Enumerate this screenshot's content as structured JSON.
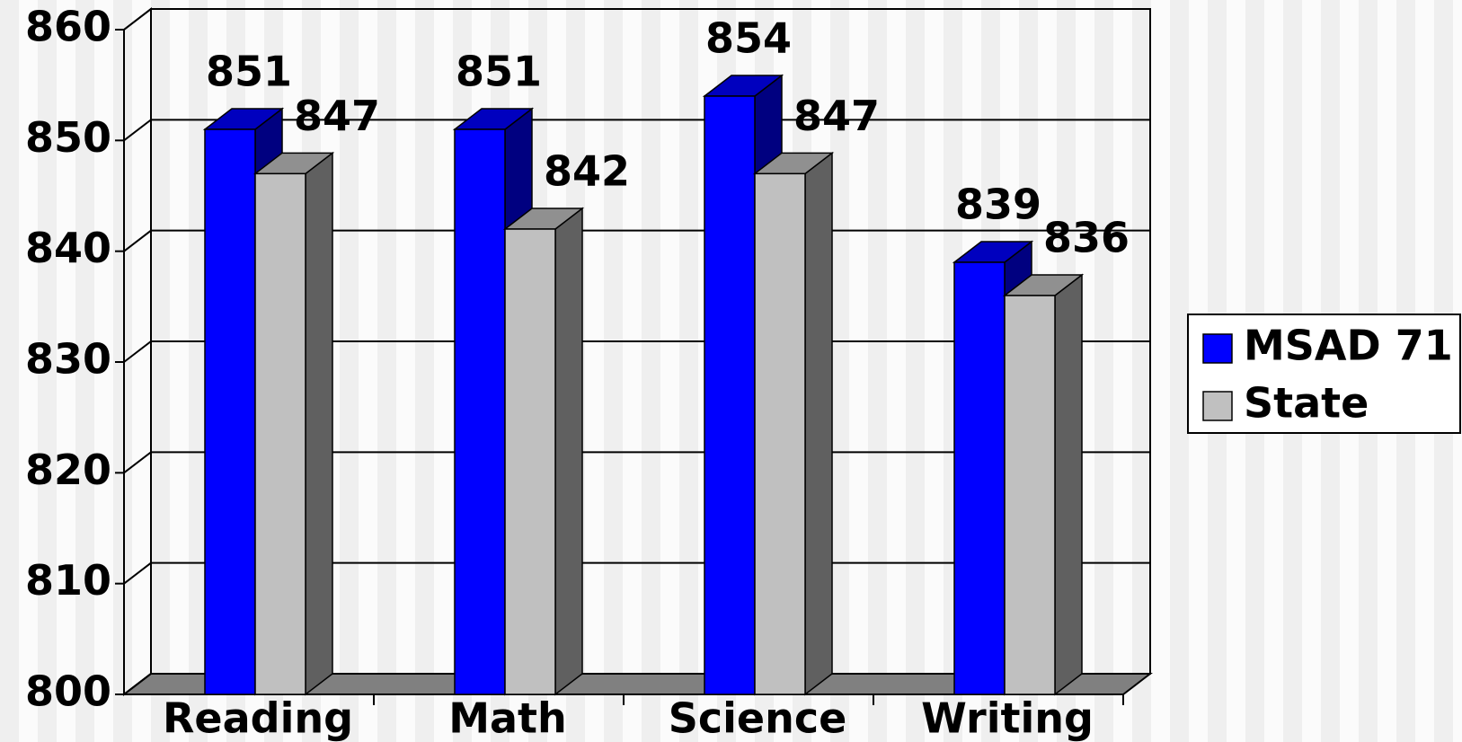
{
  "chart_data": {
    "type": "bar3d",
    "categories": [
      "Reading",
      "Math",
      "Science",
      "Writing"
    ],
    "series": [
      {
        "name": "MSAD 71",
        "color": "#0000ff",
        "values": [
          851,
          851,
          854,
          839
        ]
      },
      {
        "name": "State",
        "color": "#c0c0c0",
        "values": [
          847,
          842,
          847,
          836
        ]
      }
    ],
    "ylim": [
      800,
      860
    ],
    "yticks": [
      800,
      810,
      820,
      830,
      840,
      850,
      860
    ],
    "grid": true,
    "legend": "right"
  }
}
